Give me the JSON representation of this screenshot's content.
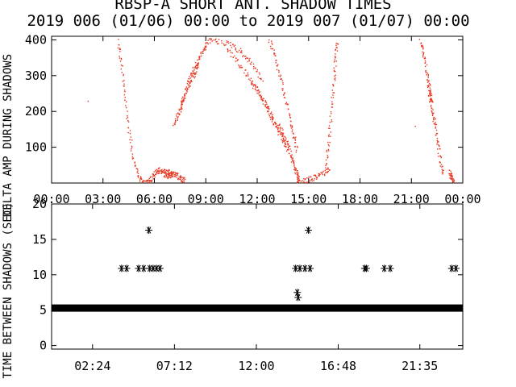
{
  "figure": {
    "title": "RBSP-A SHORT ANT. SHADOW TIMES",
    "subtitle": "2019 006 (01/06) 00:00 to 2019 007 (01/07) 00:00"
  },
  "colors": {
    "background": "#ffffff",
    "axes": "#000000",
    "top_series": "#e8351f",
    "bottom_series": "#000000"
  },
  "chart_data": [
    {
      "type": "scatter",
      "ylabel": "DELTA AMP DURING SHADOWS",
      "xlim": [
        0,
        24
      ],
      "ylim": [
        0,
        410
      ],
      "ytick_values": [
        100,
        200,
        300,
        400
      ],
      "ytick_labels": [
        "100",
        "200",
        "300",
        "400"
      ],
      "xtick_values": [
        0,
        3,
        6,
        9,
        12,
        15,
        18,
        21,
        24
      ],
      "xtick_labels": [
        "00:00",
        "03:00",
        "06:00",
        "09:00",
        "12:00",
        "15:00",
        "18:00",
        "21:00",
        "00:00"
      ],
      "grid": false,
      "series": [
        {
          "marker": "dot",
          "segments": [
            {
              "x": [
                3.85,
                4.05,
                4.25,
                4.5,
                4.75,
                5.05,
                5.3,
                5.5
              ],
              "y": [
                400,
                330,
                240,
                150,
                70,
                20,
                5,
                0
              ]
            },
            {
              "x": [
                5.5,
                5.65,
                5.85,
                6.05,
                6.25,
                6.45,
                6.7,
                6.9,
                7.0
              ],
              "y": [
                5,
                8,
                15,
                30,
                38,
                30,
                20,
                22,
                25
              ]
            },
            {
              "x": [
                6.55,
                6.85,
                7.1,
                7.35,
                7.55,
                7.75
              ],
              "y": [
                40,
                30,
                25,
                20,
                12,
                8
              ]
            },
            {
              "x": [
                7.1,
                7.4,
                7.75,
                8.05,
                8.3,
                8.55,
                8.9,
                9.15
              ],
              "y": [
                160,
                200,
                255,
                300,
                320,
                345,
                375,
                400
              ]
            },
            {
              "x": [
                7.4,
                7.65,
                7.95,
                8.25,
                8.55
              ],
              "y": [
                195,
                230,
                270,
                300,
                330
              ]
            },
            {
              "x": [
                9.2,
                9.9,
                10.6,
                11.2,
                11.75,
                12.3
              ],
              "y": [
                400,
                395,
                385,
                360,
                330,
                285
              ]
            },
            {
              "x": [
                10.2,
                10.8,
                11.35,
                11.9,
                12.4,
                12.85,
                13.25
              ],
              "y": [
                375,
                345,
                305,
                265,
                225,
                180,
                140
              ]
            },
            {
              "x": [
                11.6,
                12.1,
                12.6,
                12.95,
                13.25,
                13.5,
                13.75
              ],
              "y": [
                285,
                250,
                210,
                175,
                150,
                120,
                90
              ]
            },
            {
              "x": [
                12.7,
                13.0,
                13.3,
                13.6,
                13.9,
                14.1,
                14.3
              ],
              "y": [
                400,
                350,
                300,
                240,
                180,
                130,
                90
              ]
            },
            {
              "x": [
                13.3,
                13.55,
                13.8,
                14.0,
                14.2,
                14.35,
                14.45
              ],
              "y": [
                160,
                130,
                100,
                70,
                40,
                20,
                5
              ]
            },
            {
              "x": [
                14.1,
                14.6,
                15.1,
                15.5,
                15.9,
                16.2
              ],
              "y": [
                0,
                5,
                12,
                20,
                32,
                45
              ]
            },
            {
              "x": [
                16.0,
                16.15,
                16.3,
                16.45,
                16.55,
                16.65
              ],
              "y": [
                50,
                120,
                200,
                280,
                350,
                400
              ]
            },
            {
              "x": [
                21.5,
                21.7,
                21.9,
                22.0,
                22.1,
                22.2
              ],
              "y": [
                400,
                360,
                300,
                270,
                250,
                230
              ]
            },
            {
              "x": [
                22.0,
                22.2,
                22.35,
                22.5,
                22.65,
                22.85
              ],
              "y": [
                250,
                200,
                170,
                120,
                70,
                20
              ]
            },
            {
              "x": [
                23.2,
                23.3,
                23.4,
                23.5
              ],
              "y": [
                30,
                15,
                5,
                0
              ]
            }
          ],
          "isolated_points": [
            {
              "x": 2.1,
              "y": 230
            },
            {
              "x": 21.2,
              "y": 160
            }
          ]
        }
      ]
    },
    {
      "type": "scatter",
      "ylabel": "TIME BETWEEN SHADOWS (SEC)",
      "xlim": [
        0,
        24.1
      ],
      "ylim": [
        -0.5,
        20
      ],
      "ytick_values": [
        0,
        5,
        10,
        15,
        20
      ],
      "ytick_labels": [
        "0",
        "5",
        "10",
        "15",
        "20"
      ],
      "xtick_values": [
        2.4,
        7.2,
        12.0,
        16.8,
        21.583
      ],
      "xtick_labels": [
        "02:24",
        "07:12",
        "12:00",
        "16:48",
        "21:35"
      ],
      "grid": false,
      "series": [
        {
          "marker": "asterisk",
          "baseline": {
            "x_range": [
              0,
              24.1
            ],
            "y": 5.35
          },
          "points": [
            {
              "x": 4.1,
              "y": 10.9
            },
            {
              "x": 4.4,
              "y": 10.9
            },
            {
              "x": 5.1,
              "y": 10.9
            },
            {
              "x": 5.4,
              "y": 10.9
            },
            {
              "x": 5.7,
              "y": 16.3
            },
            {
              "x": 5.75,
              "y": 10.9
            },
            {
              "x": 5.95,
              "y": 10.9
            },
            {
              "x": 6.15,
              "y": 10.9
            },
            {
              "x": 6.35,
              "y": 10.9
            },
            {
              "x": 14.3,
              "y": 10.9
            },
            {
              "x": 14.55,
              "y": 10.9
            },
            {
              "x": 14.4,
              "y": 7.5
            },
            {
              "x": 14.45,
              "y": 6.8
            },
            {
              "x": 15.05,
              "y": 16.3
            },
            {
              "x": 14.85,
              "y": 10.9
            },
            {
              "x": 15.15,
              "y": 10.9
            },
            {
              "x": 18.35,
              "y": 10.9
            },
            {
              "x": 18.45,
              "y": 10.9
            },
            {
              "x": 19.5,
              "y": 10.9
            },
            {
              "x": 19.85,
              "y": 10.9
            },
            {
              "x": 23.45,
              "y": 10.9
            },
            {
              "x": 23.7,
              "y": 10.9
            }
          ]
        }
      ]
    }
  ]
}
